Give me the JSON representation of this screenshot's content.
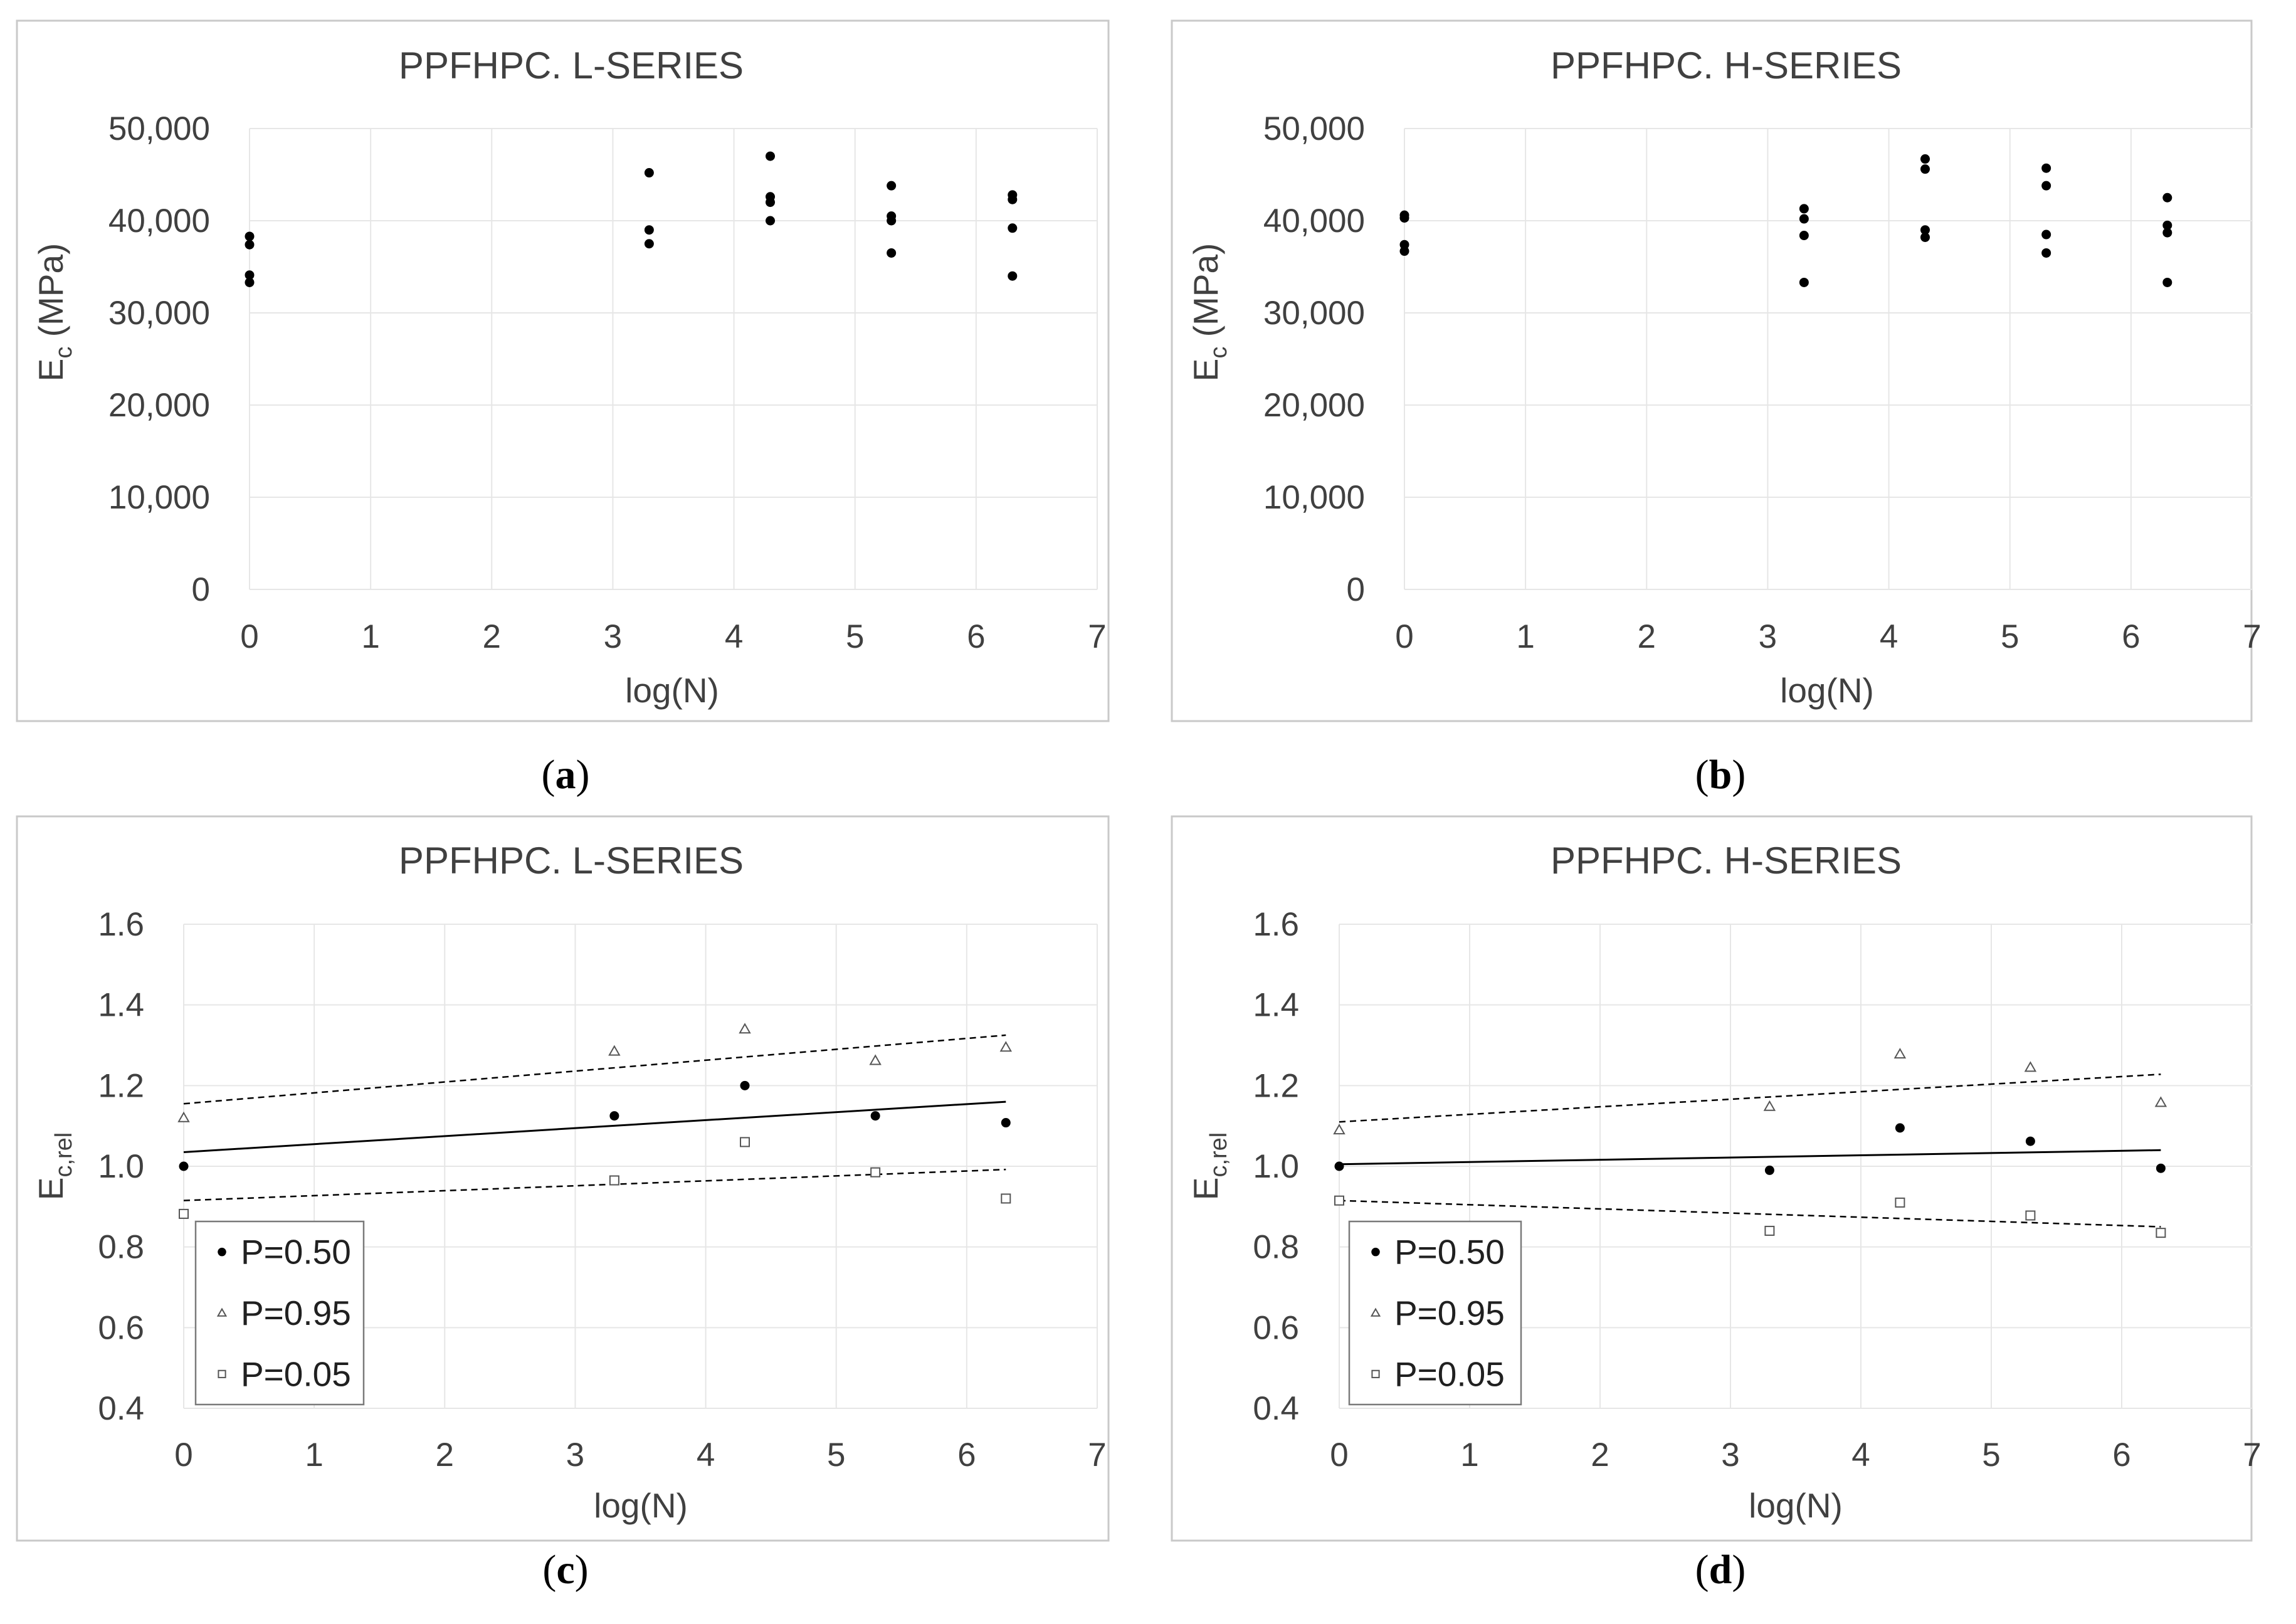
{
  "chart_data": [
    {
      "id": "a",
      "type": "scatter",
      "title": "PPFHPC. L-SERIES",
      "caption": {
        "open": "(",
        "letter": "a",
        "close": ")"
      },
      "xlabel": "log(N)",
      "ylabel": {
        "main": "E",
        "sub": "c",
        "rest": " (MPa)"
      },
      "xlim": [
        0,
        7
      ],
      "ylim": [
        0,
        50000
      ],
      "xticks": [
        "0",
        "1",
        "2",
        "3",
        "4",
        "5",
        "6",
        "7"
      ],
      "yticks": [
        "0",
        "10,000",
        "20,000",
        "30,000",
        "40,000",
        "50,000"
      ],
      "series": [
        {
          "name": "E_c",
          "marker": "dot",
          "points": [
            [
              0,
              38300
            ],
            [
              0,
              37400
            ],
            [
              0,
              34100
            ],
            [
              0,
              33300
            ],
            [
              3.3,
              45200
            ],
            [
              3.3,
              39000
            ],
            [
              3.3,
              37500
            ],
            [
              4.3,
              47000
            ],
            [
              4.3,
              42600
            ],
            [
              4.3,
              42000
            ],
            [
              4.3,
              40000
            ],
            [
              5.3,
              43800
            ],
            [
              5.3,
              40500
            ],
            [
              5.3,
              40000
            ],
            [
              5.3,
              36500
            ],
            [
              6.3,
              42800
            ],
            [
              6.3,
              42300
            ],
            [
              6.3,
              39200
            ],
            [
              6.3,
              34000
            ]
          ]
        }
      ],
      "lines": []
    },
    {
      "id": "b",
      "type": "scatter",
      "title": "PPFHPC. H-SERIES",
      "caption": {
        "open": "(",
        "letter": "b",
        "close": ")"
      },
      "xlabel": "log(N)",
      "ylabel": {
        "main": "E",
        "sub": "c",
        "rest": " (MPa)"
      },
      "xlim": [
        0,
        7
      ],
      "ylim": [
        0,
        50000
      ],
      "xticks": [
        "0",
        "1",
        "2",
        "3",
        "4",
        "5",
        "6",
        "7"
      ],
      "yticks": [
        "0",
        "10,000",
        "20,000",
        "30,000",
        "40,000",
        "50,000"
      ],
      "series": [
        {
          "name": "E_c",
          "marker": "dot",
          "points": [
            [
              0,
              40600
            ],
            [
              0,
              40300
            ],
            [
              0,
              37400
            ],
            [
              0,
              36700
            ],
            [
              3.3,
              41300
            ],
            [
              3.3,
              40200
            ],
            [
              3.3,
              38400
            ],
            [
              3.3,
              33300
            ],
            [
              4.3,
              46700
            ],
            [
              4.3,
              45600
            ],
            [
              4.3,
              39000
            ],
            [
              4.3,
              38200
            ],
            [
              5.3,
              45700
            ],
            [
              5.3,
              43800
            ],
            [
              5.3,
              38500
            ],
            [
              5.3,
              36500
            ],
            [
              6.3,
              42500
            ],
            [
              6.3,
              39500
            ],
            [
              6.3,
              38700
            ],
            [
              6.3,
              33300
            ]
          ]
        }
      ],
      "lines": []
    },
    {
      "id": "c",
      "type": "scatter",
      "title": "PPFHPC. L-SERIES",
      "caption": {
        "open": "(",
        "letter": "c",
        "close": ")"
      },
      "xlabel": "log(N)",
      "ylabel": {
        "main": "E",
        "sub": "c,rel",
        "rest": ""
      },
      "xlim": [
        0,
        7
      ],
      "ylim": [
        0.4,
        1.6
      ],
      "xticks": [
        "0",
        "1",
        "2",
        "3",
        "4",
        "5",
        "6",
        "7"
      ],
      "yticks": [
        "0.4",
        "0.6",
        "0.8",
        "1.0",
        "1.2",
        "1.4",
        "1.6"
      ],
      "legend": {
        "position": "bottom-left",
        "entries": [
          "P=0.50",
          "P=0.95",
          "P=0.05"
        ]
      },
      "series": [
        {
          "name": "P=0.50",
          "marker": "dot",
          "points": [
            [
              0,
              1.0
            ],
            [
              3.3,
              1.125
            ],
            [
              4.3,
              1.2
            ],
            [
              5.3,
              1.125
            ],
            [
              6.3,
              1.108
            ]
          ]
        },
        {
          "name": "P=0.95",
          "marker": "triangle",
          "points": [
            [
              0,
              1.12
            ],
            [
              3.3,
              1.285
            ],
            [
              4.3,
              1.34
            ],
            [
              5.3,
              1.262
            ],
            [
              6.3,
              1.295
            ]
          ]
        },
        {
          "name": "P=0.05",
          "marker": "square",
          "points": [
            [
              0,
              0.882
            ],
            [
              3.3,
              0.965
            ],
            [
              4.3,
              1.06
            ],
            [
              5.3,
              0.985
            ],
            [
              6.3,
              0.92
            ]
          ]
        }
      ],
      "lines": [
        {
          "name": "P=0.50 fit",
          "style": "solid",
          "from": [
            0,
            1.035
          ],
          "to": [
            6.3,
            1.16
          ]
        },
        {
          "name": "P=0.95 fit",
          "style": "dashed",
          "from": [
            0,
            1.155
          ],
          "to": [
            6.3,
            1.325
          ]
        },
        {
          "name": "P=0.05 fit",
          "style": "dashed",
          "from": [
            0,
            0.915
          ],
          "to": [
            6.3,
            0.992
          ]
        }
      ]
    },
    {
      "id": "d",
      "type": "scatter",
      "title": "PPFHPC. H-SERIES",
      "caption": {
        "open": "(",
        "letter": "d",
        "close": ")"
      },
      "xlabel": "log(N)",
      "ylabel": {
        "main": "E",
        "sub": "c,rel",
        "rest": ""
      },
      "xlim": [
        0,
        7
      ],
      "ylim": [
        0.4,
        1.6
      ],
      "xticks": [
        "0",
        "1",
        "2",
        "3",
        "4",
        "5",
        "6",
        "7"
      ],
      "yticks": [
        "0.4",
        "0.6",
        "0.8",
        "1.0",
        "1.2",
        "1.4",
        "1.6"
      ],
      "legend": {
        "position": "bottom-left",
        "entries": [
          "P=0.50",
          "P=0.95",
          "P=0.05"
        ]
      },
      "series": [
        {
          "name": "P=0.50",
          "marker": "dot",
          "points": [
            [
              0,
              1.0
            ],
            [
              3.3,
              0.99
            ],
            [
              4.3,
              1.095
            ],
            [
              5.3,
              1.062
            ],
            [
              6.3,
              0.995
            ]
          ]
        },
        {
          "name": "P=0.95",
          "marker": "triangle",
          "points": [
            [
              0,
              1.09
            ],
            [
              3.3,
              1.148
            ],
            [
              4.3,
              1.278
            ],
            [
              5.3,
              1.245
            ],
            [
              6.3,
              1.158
            ]
          ]
        },
        {
          "name": "P=0.05",
          "marker": "square",
          "points": [
            [
              0,
              0.915
            ],
            [
              3.3,
              0.84
            ],
            [
              4.3,
              0.91
            ],
            [
              5.3,
              0.878
            ],
            [
              6.3,
              0.835
            ]
          ]
        }
      ],
      "lines": [
        {
          "name": "P=0.50 fit",
          "style": "solid",
          "from": [
            0,
            1.005
          ],
          "to": [
            6.3,
            1.04
          ]
        },
        {
          "name": "P=0.95 fit",
          "style": "dashed",
          "from": [
            0,
            1.11
          ],
          "to": [
            6.3,
            1.228
          ]
        },
        {
          "name": "P=0.05 fit",
          "style": "dashed",
          "from": [
            0,
            0.915
          ],
          "to": [
            6.3,
            0.85
          ]
        }
      ]
    }
  ]
}
